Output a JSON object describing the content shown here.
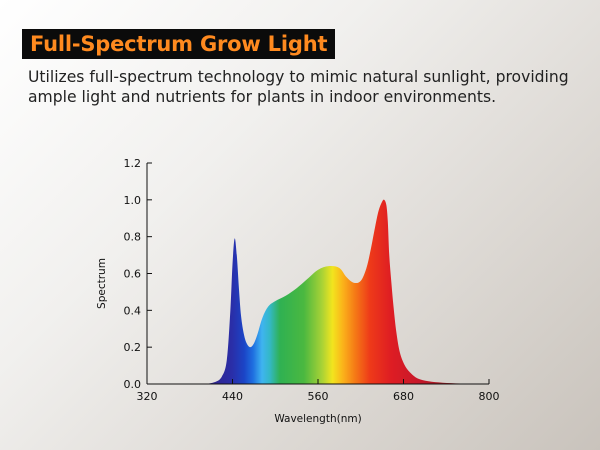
{
  "header": {
    "title": "Full-Spectrum Grow Light",
    "subtitle": "Utilizes full-spectrum technology to mimic natural sunlight, providing ample light and nutrients for plants in indoor environments."
  },
  "colors": {
    "title_bg": "#0b0b0b",
    "title_text": "#ff8a1f",
    "subtitle_text": "#222222"
  },
  "chart_data": {
    "type": "area",
    "title": "",
    "xlabel": "Wavelength(nm)",
    "ylabel": "Spectrum",
    "xlim": [
      320,
      800
    ],
    "ylim": [
      0,
      1.2
    ],
    "xticks": [
      "320",
      "440",
      "560",
      "680",
      "800"
    ],
    "yticks": [
      "0.0",
      "0.2",
      "0.4",
      "0.6",
      "0.8",
      "1.0",
      "1.2"
    ],
    "fill": "visible-spectrum gradient",
    "grid": false,
    "legend": "none",
    "x": [
      384,
      400,
      415,
      425,
      432,
      437,
      440,
      443,
      446,
      449,
      452,
      456,
      460,
      465,
      470,
      475,
      482,
      490,
      500,
      515,
      530,
      545,
      560,
      575,
      590,
      600,
      610,
      620,
      628,
      634,
      640,
      645,
      650,
      653,
      656,
      658,
      660,
      663,
      666,
      670,
      675,
      682,
      690,
      700,
      715,
      735,
      760,
      790
    ],
    "y": [
      0.0,
      0.0,
      0.01,
      0.04,
      0.13,
      0.4,
      0.65,
      0.79,
      0.7,
      0.52,
      0.37,
      0.27,
      0.22,
      0.2,
      0.22,
      0.27,
      0.36,
      0.42,
      0.45,
      0.48,
      0.52,
      0.57,
      0.62,
      0.64,
      0.63,
      0.58,
      0.55,
      0.56,
      0.63,
      0.73,
      0.85,
      0.94,
      0.99,
      1.0,
      0.97,
      0.88,
      0.7,
      0.55,
      0.42,
      0.28,
      0.17,
      0.1,
      0.06,
      0.03,
      0.015,
      0.007,
      0.003,
      0.0
    ]
  }
}
